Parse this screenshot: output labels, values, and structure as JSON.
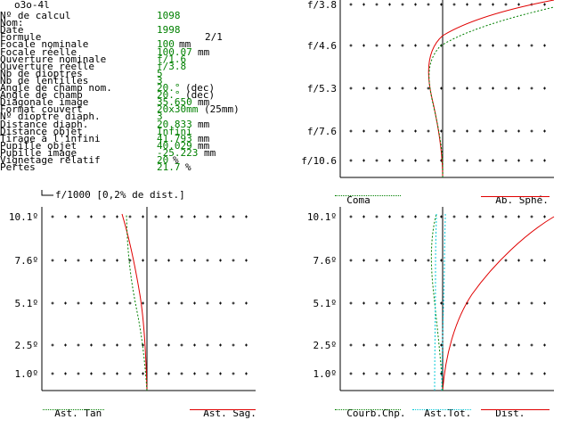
{
  "title": "o3o-4l",
  "specs": [
    {
      "label": "Nº de calcul",
      "value": "1098",
      "unit": ""
    },
    {
      "label": "Nom:",
      "value": "",
      "unit": ""
    },
    {
      "label": "Date",
      "value": "1998",
      "unit": ""
    },
    {
      "label": "Formule",
      "value": "",
      "unit": "2/1"
    },
    {
      "label": "Focale nominale",
      "value": "100",
      "unit": "mm"
    },
    {
      "label": "Focale réelle",
      "value": "100.07",
      "unit": "mm"
    },
    {
      "label": "Ouverture nominale",
      "value": "f/1.6",
      "unit": ""
    },
    {
      "label": "Ouverture réelle",
      "value": "f/3.8",
      "unit": ""
    },
    {
      "label": "Nb de dioptres",
      "value": "5",
      "unit": ""
    },
    {
      "label": "Nb de lentilles",
      "value": "3",
      "unit": ""
    },
    {
      "label": "Angle de champ nom.",
      "value": "20.°",
      "unit": "(dec)"
    },
    {
      "label": "Angle de champ",
      "value": "20.°",
      "unit": "(dec)"
    },
    {
      "label": "Diagonale image",
      "value": "35.650",
      "unit": "mm"
    },
    {
      "label": "Format couvert",
      "value": "20x30mm",
      "unit": "(25mm)"
    },
    {
      "label": "Nº dioptre diaph.",
      "value": "3",
      "unit": ""
    },
    {
      "label": "Distance diaph.",
      "value": "20.833",
      "unit": "mm"
    },
    {
      "label": "Distance objet",
      "value": "Infini",
      "unit": ""
    },
    {
      "label": "Tirage à l'infini",
      "value": "41.793",
      "unit": "mm"
    },
    {
      "label": "Pupille objet",
      "value": "40.029",
      "unit": "mm"
    },
    {
      "label": "Pupille image",
      "value": "-25.223",
      "unit": "mm"
    },
    {
      "label": "Vignetage relatif",
      "value": "20",
      "unit": "%"
    },
    {
      "label": "Pertes",
      "value": "21.7",
      "unit": "%"
    }
  ],
  "scale_note": "f/1000 [0,2% de dist.]",
  "charts": {
    "coma": {
      "ticks": [
        "f/3.8",
        "f/4.6",
        "f/5.3",
        "f/7.6",
        "f/10.6"
      ],
      "legend_left": "Coma",
      "legend_right": "Ab. Sphé."
    },
    "astig": {
      "ticks": [
        "10.1º",
        "7.6º",
        "5.1º",
        "2.5º",
        "1.0º"
      ],
      "legend_left": "Ast. Tan",
      "legend_right": "Ast. Sag."
    },
    "field": {
      "ticks": [
        "10.1º",
        "7.6º",
        "5.1º",
        "2.5º",
        "1.0º"
      ],
      "legend_1": "Courb.Chp.",
      "legend_2": "Ast.Tot.",
      "legend_3": "Dist."
    }
  },
  "colors": {
    "value": "#008000",
    "red": "#e00000",
    "green": "#008000",
    "cyan": "#00c8d8",
    "black": "#000000"
  }
}
